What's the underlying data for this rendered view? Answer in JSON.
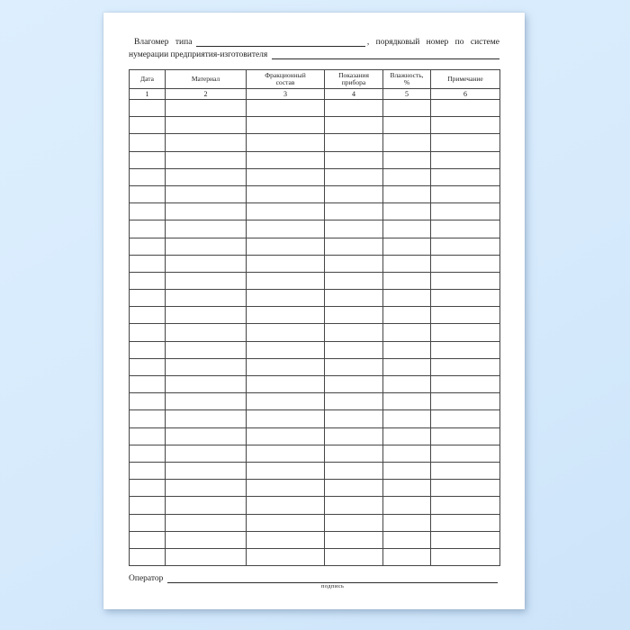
{
  "doc": {
    "header": {
      "line1_prefix": "Влагомер типа",
      "line1_suffix": ", порядковый номер по системе",
      "line2_prefix": "нумерации предприятия-изготовителя"
    },
    "table": {
      "columns": [
        {
          "key": "date",
          "label": "Дата",
          "lines": [
            "Дата"
          ],
          "num": "1"
        },
        {
          "key": "material",
          "label": "Материал",
          "lines": [
            "Материал"
          ],
          "num": "2"
        },
        {
          "key": "fraction",
          "label": "Фракционный состав",
          "lines": [
            "Фракционный",
            "состав"
          ],
          "num": "3"
        },
        {
          "key": "reading",
          "label": "Показания прибора",
          "lines": [
            "Показания",
            "прибора"
          ],
          "num": "4"
        },
        {
          "key": "humidity",
          "label": "Влажность, %",
          "lines": [
            "Влажность,",
            "%"
          ],
          "num": "5"
        },
        {
          "key": "note",
          "label": "Примечание",
          "lines": [
            "Примечание"
          ],
          "num": "6"
        }
      ],
      "empty_row_count": 27
    },
    "footer": {
      "operator_label": "Оператор",
      "signature_caption": "подпись"
    }
  },
  "colors": {
    "background": "#d6eafc",
    "page": "#ffffff",
    "border": "#454545",
    "rule": "#2b2b2b",
    "text": "#1d1d1d"
  }
}
